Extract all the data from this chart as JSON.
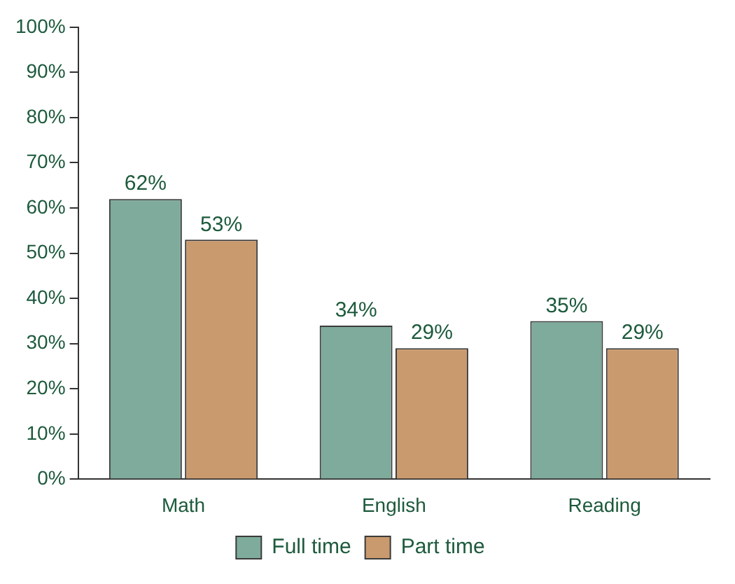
{
  "chart_data": {
    "type": "bar",
    "categories": [
      "Math",
      "English",
      "Reading"
    ],
    "series": [
      {
        "name": "Full time",
        "color": "#7eab9b",
        "values": [
          62,
          34,
          35
        ],
        "value_labels": [
          "62%",
          "34%",
          "35%"
        ]
      },
      {
        "name": "Part time",
        "color": "#c99a6e",
        "values": [
          53,
          29,
          29
        ],
        "value_labels": [
          "53%",
          "29%",
          "29%"
        ]
      }
    ],
    "ylim": [
      0,
      100
    ],
    "yticks": [
      {
        "value": 0,
        "label": "0%"
      },
      {
        "value": 10,
        "label": "10%"
      },
      {
        "value": 20,
        "label": "20%"
      },
      {
        "value": 30,
        "label": "30%"
      },
      {
        "value": 40,
        "label": "40%"
      },
      {
        "value": 50,
        "label": "50%"
      },
      {
        "value": 60,
        "label": "60%"
      },
      {
        "value": 70,
        "label": "70%"
      },
      {
        "value": 80,
        "label": "80%"
      },
      {
        "value": 90,
        "label": "90%"
      },
      {
        "value": 100,
        "label": "100%"
      }
    ],
    "grid": false,
    "legend": "bottom"
  }
}
